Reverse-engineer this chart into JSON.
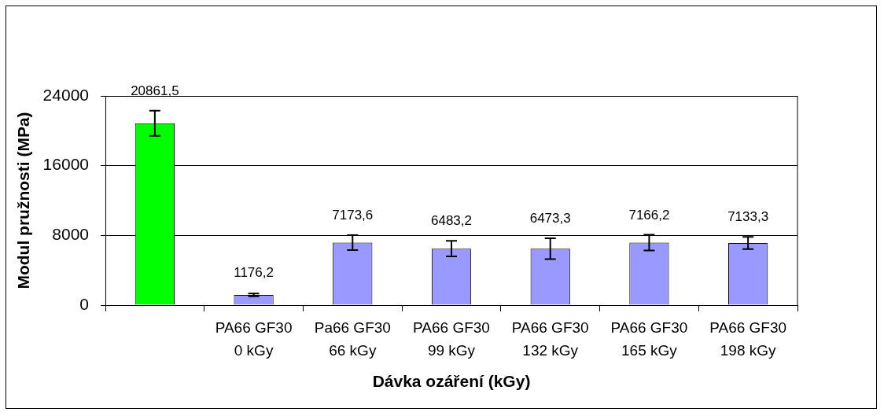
{
  "chart_data": {
    "type": "bar",
    "categories": [
      null,
      "PA66 GF30\n0 kGy",
      "Pa66 GF30\n66 kGy",
      "PA66 GF30\n99 kGy",
      "PA66 GF30\n132 kGy",
      "PA66 GF30\n165 kGy",
      "PA66 GF30\n198 kGy"
    ],
    "values": [
      20861.5,
      1176.2,
      7173.6,
      6483.2,
      6473.3,
      7166.2,
      7133.3
    ],
    "colors": [
      "#00ff00",
      "#9999ff",
      "#9999ff",
      "#9999ff",
      "#9999ff",
      "#9999ff",
      "#9999ff"
    ],
    "errors": [
      1450,
      150,
      850,
      900,
      1200,
      900,
      700
    ],
    "value_labels": [
      "20861,5",
      "1176,2",
      "7173,6",
      "6483,2",
      "6473,3",
      "7166,2",
      "7133,3"
    ],
    "xlabel": "Dávka ozáření (kGy)",
    "ylabel": "Modul pružnosti (MPa)",
    "ylim": [
      0,
      24000
    ],
    "yticks": [
      0,
      8000,
      16000,
      24000
    ],
    "grid": "y",
    "legend": false
  }
}
